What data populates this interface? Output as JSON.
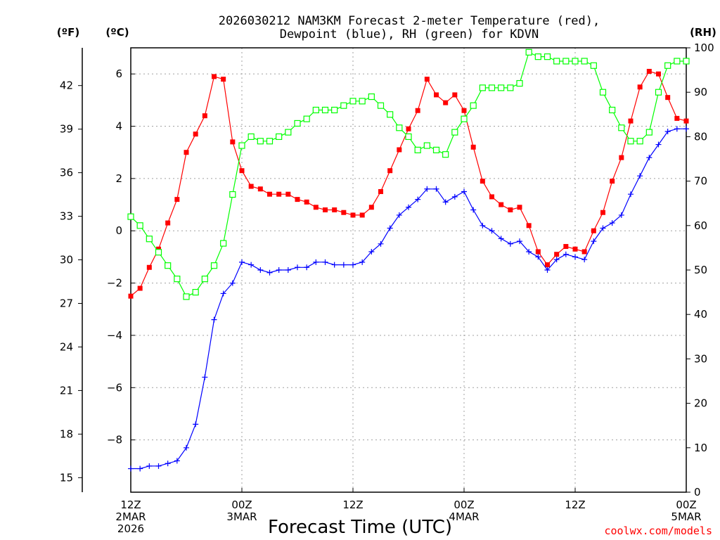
{
  "chart_data": {
    "type": "line",
    "title_line1": "2026030212 NAM3KM Forecast 2-meter Temperature (red),",
    "title_line2": "Dewpoint (blue), RH (green) for KDVN",
    "left_unit_f": "(ºF)",
    "left_unit_c": "(ºC)",
    "right_unit": "(RH)",
    "xlabel": "Forecast Time (UTC)",
    "credit": "coolwx.com/models",
    "ylim_c": [
      -10,
      7
    ],
    "ylim_rh": [
      0,
      100
    ],
    "xlim_hours": [
      0,
      60
    ],
    "celsius_ticks": [
      "6",
      "4",
      "2",
      "0",
      "−2",
      "−4",
      "−6",
      "−8"
    ],
    "celsius_tick_values": [
      6,
      4,
      2,
      0,
      -2,
      -4,
      -6,
      -8
    ],
    "fahrenheit_ticks": [
      "42",
      "39",
      "36",
      "33",
      "30",
      "27",
      "24",
      "21",
      "18",
      "15"
    ],
    "fahrenheit_tick_values": [
      42,
      39,
      36,
      33,
      30,
      27,
      24,
      21,
      18,
      15
    ],
    "rh_ticks": [
      "100",
      "90",
      "80",
      "70",
      "60",
      "50",
      "40",
      "30",
      "20",
      "10",
      "0"
    ],
    "rh_tick_values": [
      100,
      90,
      80,
      70,
      60,
      50,
      40,
      30,
      20,
      10,
      0
    ],
    "x_ticks": [
      {
        "hour": 0,
        "line1": "12Z",
        "line2": "2MAR",
        "line3": "2026"
      },
      {
        "hour": 12,
        "line1": "00Z",
        "line2": "3MAR",
        "line3": ""
      },
      {
        "hour": 24,
        "line1": "12Z",
        "line2": "",
        "line3": ""
      },
      {
        "hour": 36,
        "line1": "00Z",
        "line2": "4MAR",
        "line3": ""
      },
      {
        "hour": 48,
        "line1": "12Z",
        "line2": "",
        "line3": ""
      },
      {
        "hour": 60,
        "line1": "00Z",
        "line2": "5MAR",
        "line3": ""
      }
    ],
    "series": [
      {
        "name": "Temperature",
        "color": "#ff0000",
        "units": "C",
        "marker": "square",
        "x": [
          0,
          1,
          2,
          3,
          4,
          5,
          6,
          7,
          8,
          9,
          10,
          11,
          12,
          13,
          14,
          15,
          16,
          17,
          18,
          19,
          20,
          21,
          22,
          23,
          24,
          25,
          26,
          27,
          28,
          29,
          30,
          31,
          32,
          33,
          34,
          35,
          36,
          37,
          38,
          39,
          40,
          41,
          42,
          43,
          44,
          45,
          46,
          47,
          48,
          49,
          50,
          51,
          52,
          53,
          54,
          55,
          56,
          57,
          58,
          59,
          60
        ],
        "values": [
          -2.5,
          -2.2,
          -1.4,
          -0.7,
          0.3,
          1.2,
          3.0,
          3.7,
          4.4,
          5.9,
          5.8,
          3.4,
          2.3,
          1.7,
          1.6,
          1.4,
          1.4,
          1.4,
          1.2,
          1.1,
          0.9,
          0.8,
          0.8,
          0.7,
          0.6,
          0.6,
          0.9,
          1.5,
          2.3,
          3.1,
          3.9,
          4.6,
          5.8,
          5.2,
          4.9,
          5.2,
          4.6,
          3.2,
          1.9,
          1.3,
          1.0,
          0.8,
          0.9,
          0.2,
          -0.8,
          -1.3,
          -0.9,
          -0.6,
          -0.7,
          -0.8,
          0.0,
          0.7,
          1.9,
          2.8,
          4.2,
          5.5,
          6.1,
          6.0,
          5.1,
          4.3,
          4.2
        ]
      },
      {
        "name": "Dewpoint",
        "color": "#0000ff",
        "units": "C",
        "marker": "plus",
        "x": [
          0,
          1,
          2,
          3,
          4,
          5,
          6,
          7,
          8,
          9,
          10,
          11,
          12,
          13,
          14,
          15,
          16,
          17,
          18,
          19,
          20,
          21,
          22,
          23,
          24,
          25,
          26,
          27,
          28,
          29,
          30,
          31,
          32,
          33,
          34,
          35,
          36,
          37,
          38,
          39,
          40,
          41,
          42,
          43,
          44,
          45,
          46,
          47,
          48,
          49,
          50,
          51,
          52,
          53,
          54,
          55,
          56,
          57,
          58,
          59,
          60
        ],
        "values": [
          -9.1,
          -9.1,
          -9.0,
          -9.0,
          -8.9,
          -8.8,
          -8.3,
          -7.4,
          -5.6,
          -3.4,
          -2.4,
          -2.0,
          -1.2,
          -1.3,
          -1.5,
          -1.6,
          -1.5,
          -1.5,
          -1.4,
          -1.4,
          -1.2,
          -1.2,
          -1.3,
          -1.3,
          -1.3,
          -1.2,
          -0.8,
          -0.5,
          0.1,
          0.6,
          0.9,
          1.2,
          1.6,
          1.6,
          1.1,
          1.3,
          1.5,
          0.8,
          0.2,
          0.0,
          -0.3,
          -0.5,
          -0.4,
          -0.8,
          -1.0,
          -1.5,
          -1.1,
          -0.9,
          -1.0,
          -1.1,
          -0.4,
          0.1,
          0.3,
          0.6,
          1.4,
          2.1,
          2.8,
          3.3,
          3.8,
          3.9,
          3.9
        ]
      },
      {
        "name": "RH",
        "color": "#00ff00",
        "units": "%",
        "marker": "open-square",
        "x": [
          0,
          1,
          2,
          3,
          4,
          5,
          6,
          7,
          8,
          9,
          10,
          11,
          12,
          13,
          14,
          15,
          16,
          17,
          18,
          19,
          20,
          21,
          22,
          23,
          24,
          25,
          26,
          27,
          28,
          29,
          30,
          31,
          32,
          33,
          34,
          35,
          36,
          37,
          38,
          39,
          40,
          41,
          42,
          43,
          44,
          45,
          46,
          47,
          48,
          49,
          50,
          51,
          52,
          53,
          54,
          55,
          56,
          57,
          58,
          59,
          60
        ],
        "values": [
          62,
          60,
          57,
          54,
          51,
          48,
          44,
          45,
          48,
          51,
          56,
          67,
          78,
          80,
          79,
          79,
          80,
          81,
          83,
          84,
          86,
          86,
          86,
          87,
          88,
          88,
          89,
          87,
          85,
          82,
          80,
          77,
          78,
          77,
          76,
          81,
          84,
          87,
          91,
          91,
          91,
          91,
          92,
          99,
          98,
          98,
          97,
          97,
          97,
          97,
          96,
          90,
          86,
          82,
          79,
          79,
          81,
          90,
          96,
          97,
          97
        ]
      }
    ]
  }
}
